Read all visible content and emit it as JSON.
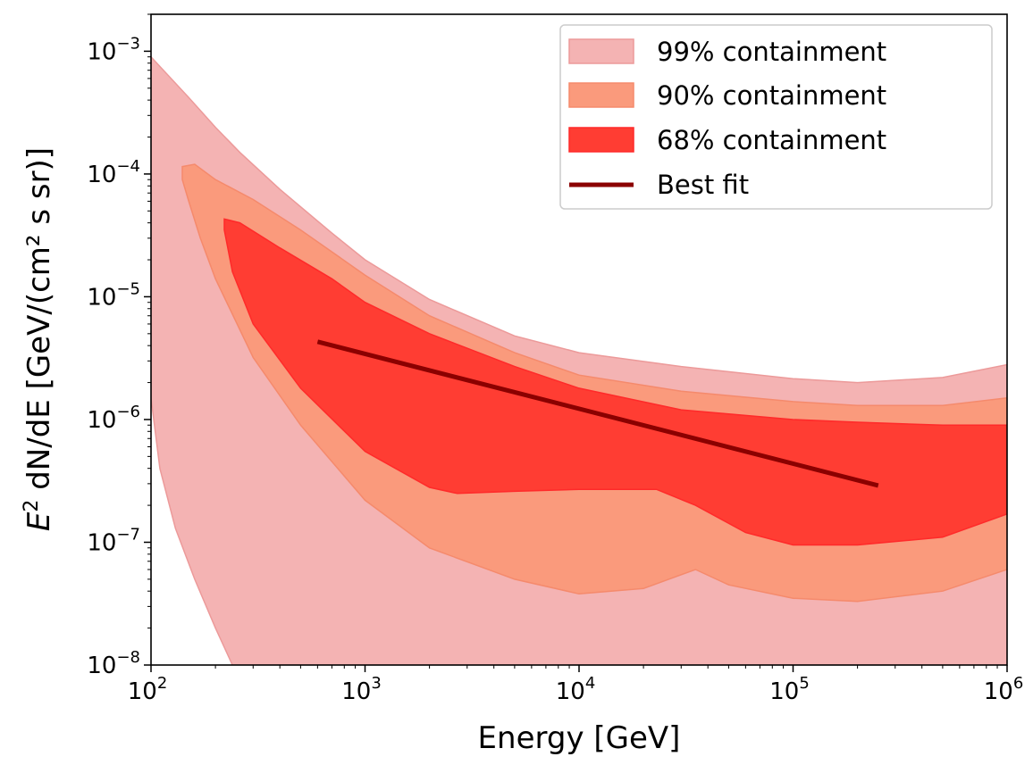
{
  "chart_data": {
    "type": "area",
    "xlabel": "Energy [GeV]",
    "ylabel_prefix": "E",
    "ylabel_sup": "2",
    "ylabel_suffix": " dN/dE [GeV/(cm² s sr)]",
    "xscale": "log",
    "yscale": "log",
    "xlim": [
      100,
      1000000
    ],
    "ylim": [
      1e-08,
      0.002
    ],
    "grid": false,
    "legend_position": "top-right",
    "x_ticks": [
      {
        "value": 100,
        "base": "10",
        "exp": "2"
      },
      {
        "value": 1000,
        "base": "10",
        "exp": "3"
      },
      {
        "value": 10000,
        "base": "10",
        "exp": "4"
      },
      {
        "value": 100000,
        "base": "10",
        "exp": "5"
      },
      {
        "value": 1000000,
        "base": "10",
        "exp": "6"
      }
    ],
    "y_ticks": [
      {
        "value": 1e-08,
        "base": "10",
        "exp": "−8"
      },
      {
        "value": 1e-07,
        "base": "10",
        "exp": "−7"
      },
      {
        "value": 1e-06,
        "base": "10",
        "exp": "−6"
      },
      {
        "value": 1e-05,
        "base": "10",
        "exp": "−5"
      },
      {
        "value": 0.0001,
        "base": "10",
        "exp": "−4"
      },
      {
        "value": 0.001,
        "base": "10",
        "exp": "−3"
      }
    ],
    "bands": [
      {
        "name": "99% containment",
        "color": "#f4b3b3",
        "edge": "#ec9a9a",
        "upper": [
          [
            100,
            0.0009
          ],
          [
            150,
            0.00042
          ],
          [
            200,
            0.00024
          ],
          [
            260,
            0.00015
          ],
          [
            400,
            7.5e-05
          ],
          [
            700,
            3.3e-05
          ],
          [
            1000,
            2e-05
          ],
          [
            2000,
            9.5e-06
          ],
          [
            5000,
            4.8e-06
          ],
          [
            10000,
            3.5e-06
          ],
          [
            30000,
            2.7e-06
          ],
          [
            100000,
            2.15e-06
          ],
          [
            200000,
            2e-06
          ],
          [
            500000,
            2.2e-06
          ],
          [
            1000000,
            2.8e-06
          ]
        ],
        "lower": [
          [
            100,
            1.5e-06
          ],
          [
            110,
            4e-07
          ],
          [
            130,
            1.3e-07
          ],
          [
            160,
            5e-08
          ],
          [
            200,
            2e-08
          ],
          [
            240,
            1e-08
          ]
        ],
        "lower_clipped_to_axis": true
      },
      {
        "name": "90% containment",
        "color": "#fa9a7c",
        "edge": "#f58a6c",
        "upper": [
          [
            140,
            0.000115
          ],
          [
            160,
            0.00012
          ],
          [
            200,
            9e-05
          ],
          [
            300,
            6.2e-05
          ],
          [
            500,
            3.5e-05
          ],
          [
            1000,
            1.5e-05
          ],
          [
            2000,
            7e-06
          ],
          [
            5000,
            3.5e-06
          ],
          [
            10000,
            2.3e-06
          ],
          [
            30000,
            1.7e-06
          ],
          [
            100000,
            1.4e-06
          ],
          [
            200000,
            1.3e-06
          ],
          [
            500000,
            1.3e-06
          ],
          [
            1000000,
            1.5e-06
          ]
        ],
        "lower": [
          [
            140,
            9e-05
          ],
          [
            150,
            6e-05
          ],
          [
            170,
            3e-05
          ],
          [
            200,
            1.4e-05
          ],
          [
            300,
            3.2e-06
          ],
          [
            500,
            9e-07
          ],
          [
            1000,
            2.2e-07
          ],
          [
            2000,
            9e-08
          ],
          [
            5000,
            5e-08
          ],
          [
            10000,
            3.8e-08
          ],
          [
            20000,
            4.2e-08
          ],
          [
            35000,
            6e-08
          ],
          [
            50000,
            4.5e-08
          ],
          [
            100000,
            3.5e-08
          ],
          [
            200000,
            3.3e-08
          ],
          [
            500000,
            4e-08
          ],
          [
            1000000,
            6e-08
          ]
        ]
      },
      {
        "name": "68% containment",
        "color": "#ff3d33",
        "edge": "#ff2a2a",
        "upper": [
          [
            220,
            4.3e-05
          ],
          [
            260,
            4e-05
          ],
          [
            400,
            2.5e-05
          ],
          [
            700,
            1.4e-05
          ],
          [
            1000,
            9e-06
          ],
          [
            2000,
            5e-06
          ],
          [
            5000,
            2.7e-06
          ],
          [
            10000,
            1.8e-06
          ],
          [
            30000,
            1.2e-06
          ],
          [
            100000,
            1e-06
          ],
          [
            200000,
            9.5e-07
          ],
          [
            500000,
            9e-07
          ],
          [
            1000000,
            9e-07
          ]
        ],
        "lower": [
          [
            220,
            3.5e-05
          ],
          [
            240,
            1.6e-05
          ],
          [
            300,
            6e-06
          ],
          [
            500,
            1.8e-06
          ],
          [
            1000,
            5.5e-07
          ],
          [
            2000,
            2.8e-07
          ],
          [
            2700,
            2.5e-07
          ],
          [
            5000,
            2.6e-07
          ],
          [
            10000,
            2.7e-07
          ],
          [
            23000,
            2.7e-07
          ],
          [
            35000,
            2e-07
          ],
          [
            60000,
            1.2e-07
          ],
          [
            100000,
            9.5e-08
          ],
          [
            200000,
            9.5e-08
          ],
          [
            500000,
            1.1e-07
          ],
          [
            1000000,
            1.7e-07
          ]
        ]
      }
    ],
    "best_fit": {
      "name": "Best fit",
      "color": "#8b0000",
      "points": [
        [
          600,
          4.3e-06
        ],
        [
          250000,
          2.9e-07
        ]
      ]
    }
  }
}
